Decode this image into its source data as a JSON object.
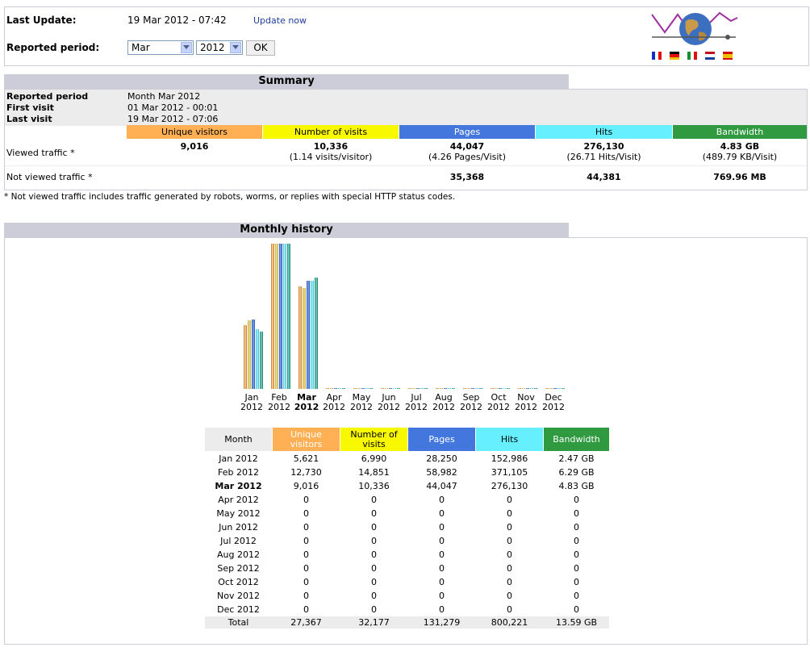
{
  "top": {
    "last_update_label": "Last Update:",
    "last_update_value": "19 Mar 2012 - 07:42",
    "update_now_link": "Update now",
    "period_label": "Reported period:",
    "month_select": "Mar",
    "year_select": "2012",
    "ok_button": "OK"
  },
  "summary": {
    "title": "Summary",
    "reported_period_label": "Reported period",
    "reported_period_value": "Month Mar 2012",
    "first_visit_label": "First visit",
    "first_visit_value": "01 Mar 2012 - 00:01",
    "last_visit_label": "Last visit",
    "last_visit_value": "19 Mar 2012 - 07:06",
    "headers": [
      "Unique visitors",
      "Number of visits",
      "Pages",
      "Hits",
      "Bandwidth"
    ],
    "viewed_label": "Viewed traffic *",
    "viewed": {
      "visitors": "9,016",
      "visits": "10,336",
      "visits_sub": "(1.14 visits/visitor)",
      "pages": "44,047",
      "pages_sub": "(4.26 Pages/Visit)",
      "hits": "276,130",
      "hits_sub": "(26.71 Hits/Visit)",
      "bandwidth": "4.83 GB",
      "bandwidth_sub": "(489.79 KB/Visit)"
    },
    "not_viewed_label": "Not viewed traffic *",
    "not_viewed": {
      "pages": "35,368",
      "hits": "44,381",
      "bandwidth": "769.96 MB"
    },
    "footnote": "* Not viewed traffic includes traffic generated by robots, worms, or replies with special HTTP status codes."
  },
  "history": {
    "title": "Monthly history",
    "chart_months": [
      "Jan",
      "Feb",
      "Mar",
      "Apr",
      "May",
      "Jun",
      "Jul",
      "Aug",
      "Sep",
      "Oct",
      "Nov",
      "Dec"
    ],
    "chart_year": "2012",
    "table_headers": {
      "month": "Month",
      "visitors": "Unique visitors",
      "visits": "Number of visits",
      "pages": "Pages",
      "hits": "Hits",
      "bandwidth": "Bandwidth"
    },
    "rows": [
      [
        "Jan 2012",
        "5,621",
        "6,990",
        "28,250",
        "152,986",
        "2.47 GB"
      ],
      [
        "Feb 2012",
        "12,730",
        "14,851",
        "58,982",
        "371,105",
        "6.29 GB"
      ],
      [
        "Mar 2012",
        "9,016",
        "10,336",
        "44,047",
        "276,130",
        "4.83 GB"
      ],
      [
        "Apr 2012",
        "0",
        "0",
        "0",
        "0",
        "0"
      ],
      [
        "May 2012",
        "0",
        "0",
        "0",
        "0",
        "0"
      ],
      [
        "Jun 2012",
        "0",
        "0",
        "0",
        "0",
        "0"
      ],
      [
        "Jul 2012",
        "0",
        "0",
        "0",
        "0",
        "0"
      ],
      [
        "Aug 2012",
        "0",
        "0",
        "0",
        "0",
        "0"
      ],
      [
        "Sep 2012",
        "0",
        "0",
        "0",
        "0",
        "0"
      ],
      [
        "Oct 2012",
        "0",
        "0",
        "0",
        "0",
        "0"
      ],
      [
        "Nov 2012",
        "0",
        "0",
        "0",
        "0",
        "0"
      ],
      [
        "Dec 2012",
        "0",
        "0",
        "0",
        "0",
        "0"
      ]
    ],
    "total": [
      "Total",
      "27,367",
      "32,177",
      "131,279",
      "800,221",
      "13.59 GB"
    ]
  },
  "colors": {
    "visitors": "#ffb055",
    "visits": "#f8f800",
    "pages": "#4477dd",
    "hits": "#66f0ff",
    "bandwidth": "#2ea495",
    "section": "#cccdd8"
  },
  "chart_data": {
    "type": "bar",
    "categories": [
      "Jan 2012",
      "Feb 2012",
      "Mar 2012",
      "Apr 2012",
      "May 2012",
      "Jun 2012",
      "Jul 2012",
      "Aug 2012",
      "Sep 2012",
      "Oct 2012",
      "Nov 2012",
      "Dec 2012"
    ],
    "series": [
      {
        "name": "Unique visitors",
        "values": [
          5621,
          12730,
          9016,
          0,
          0,
          0,
          0,
          0,
          0,
          0,
          0,
          0
        ]
      },
      {
        "name": "Number of visits",
        "values": [
          6990,
          14851,
          10336,
          0,
          0,
          0,
          0,
          0,
          0,
          0,
          0,
          0
        ]
      },
      {
        "name": "Pages",
        "values": [
          28250,
          58982,
          44047,
          0,
          0,
          0,
          0,
          0,
          0,
          0,
          0,
          0
        ]
      },
      {
        "name": "Hits",
        "values": [
          152986,
          371105,
          276130,
          0,
          0,
          0,
          0,
          0,
          0,
          0,
          0,
          0
        ]
      },
      {
        "name": "Bandwidth",
        "values": [
          2.47,
          6.29,
          4.83,
          0,
          0,
          0,
          0,
          0,
          0,
          0,
          0,
          0
        ]
      }
    ],
    "title": "Monthly history",
    "xlabel": "",
    "ylabel": ""
  }
}
